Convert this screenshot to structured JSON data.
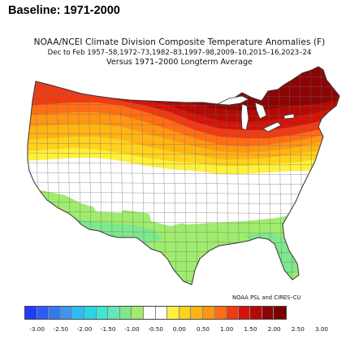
{
  "heading": "Baseline: 1971-2000",
  "title_line1": "NOAA/NCEI Climate Division Composite Temperature Anomalies (F)",
  "title_line2": "Dec to Feb   1957–58,1972–73,1982–83,1997–98,2009–10,2015–16,2023–24",
  "title_line3": "Versus 1971–2000 Longterm Average",
  "credit": "NOAA PSL and CIRES–CU",
  "colorbar": {
    "colors": [
      "#1e3cff",
      "#2a5cf5",
      "#3278f0",
      "#3e96f0",
      "#2cbef0",
      "#28d7e6",
      "#3de8d2",
      "#63e8b8",
      "#7ee88c",
      "#a0ec6e",
      "#ffffff",
      "#ffffff",
      "#fff03c",
      "#ffd21e",
      "#ffb414",
      "#ff9614",
      "#ff6e14",
      "#f03c14",
      "#d2140a",
      "#b40a05",
      "#8c0505",
      "#780000"
    ],
    "tick_labels": [
      "-3.00",
      "-2.50",
      "-2.00",
      "-1.50",
      "-1.00",
      "-0.50",
      "0.00",
      "0.50",
      "1.00",
      "1.50",
      "2.00",
      "2.50",
      "3.00"
    ]
  },
  "map": {
    "region": "Contiguous United States climate divisions",
    "pattern": "Warm anomalies (up to +3.0 F) across the northern tier and Northeast; near-normal centre and Southwest; cool anomalies (about -0.5 to -1.0 F) along the southern tier and Florida"
  }
}
